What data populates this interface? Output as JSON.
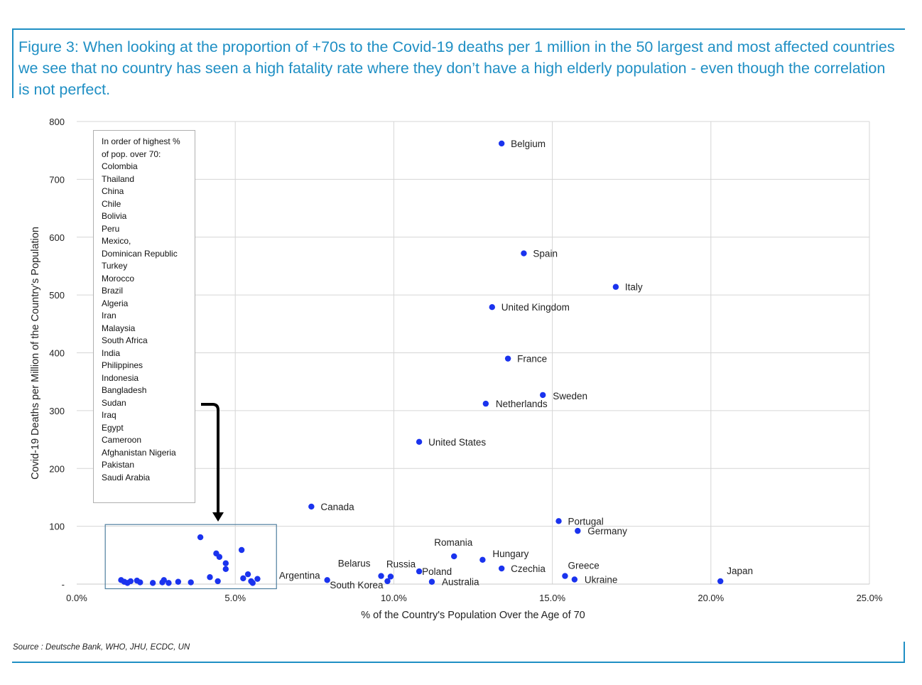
{
  "title": "Figure 3: When looking at the proportion of +70s to the Covid-19 deaths per 1 million in the 50 largest and most affected countries we see that no country has seen a high fatality rate where they don’t have a high elderly population - even though the correlation is not perfect.",
  "source": "Source : Deutsche Bank, WHO, JHU, ECDC, UN",
  "colors": {
    "accent": "#1f8fc4",
    "points": "#1a33ee",
    "grid": "#d6d6d6",
    "highlight_box": "#4f7f9f"
  },
  "legend_box": {
    "title_lines": [
      "In order of highest %",
      "of pop.  over 70:"
    ],
    "items": [
      "Colombia",
      "Thailand",
      "China",
      "Chile",
      "Bolivia",
      "Peru",
      "Mexico,",
      "Dominican Republic",
      "Turkey",
      "Morocco",
      "Brazil",
      "Algeria",
      "Iran",
      "Malaysia",
      "South Africa",
      "India",
      "Philippines",
      "Indonesia",
      "Bangladesh",
      "Sudan",
      "Iraq",
      "Egypt",
      "Cameroon",
      "Afghanistan Nigeria",
      "Pakistan",
      "Saudi Arabia"
    ]
  },
  "chart_data": {
    "type": "scatter",
    "xlabel": "% of the Country's Population Over the Age of 70",
    "ylabel": "Covid-19 Deaths per Million of the Country's Population",
    "xlim": [
      0,
      25
    ],
    "ylim": [
      0,
      800
    ],
    "grid": true,
    "x_ticks": [
      "0.0%",
      "5.0%",
      "10.0%",
      "15.0%",
      "20.0%",
      "25.0%"
    ],
    "y_ticks": [
      "-",
      "100",
      "200",
      "300",
      "400",
      "500",
      "600",
      "700",
      "800"
    ],
    "highlight_region": {
      "x": [
        0.9,
        6.3
      ],
      "y": [
        -8,
        103
      ]
    },
    "labeled_points": [
      {
        "label": "Belgium",
        "x": 13.4,
        "y": 762
      },
      {
        "label": "Spain",
        "x": 14.1,
        "y": 572
      },
      {
        "label": "Italy",
        "x": 17.0,
        "y": 514
      },
      {
        "label": "United Kingdom",
        "x": 13.1,
        "y": 479
      },
      {
        "label": "France",
        "x": 13.6,
        "y": 390
      },
      {
        "label": "Sweden",
        "x": 14.7,
        "y": 327
      },
      {
        "label": "Netherlands",
        "x": 12.9,
        "y": 312
      },
      {
        "label": "United States",
        "x": 10.8,
        "y": 246
      },
      {
        "label": "Canada",
        "x": 7.4,
        "y": 134
      },
      {
        "label": "Portugal",
        "x": 15.2,
        "y": 109
      },
      {
        "label": "Germany",
        "x": 15.8,
        "y": 92
      },
      {
        "label": "Romania",
        "x": 11.9,
        "y": 48
      },
      {
        "label": "Hungary",
        "x": 12.8,
        "y": 42
      },
      {
        "label": "Czechia",
        "x": 13.4,
        "y": 27
      },
      {
        "label": "Greece",
        "x": 15.4,
        "y": 14
      },
      {
        "label": "Ukraine",
        "x": 15.7,
        "y": 8
      },
      {
        "label": "Japan",
        "x": 20.3,
        "y": 5
      },
      {
        "label": "Argentina",
        "x": 7.9,
        "y": 7
      },
      {
        "label": "Belarus",
        "x": 9.6,
        "y": 14
      },
      {
        "label": "Russia",
        "x": 9.9,
        "y": 13
      },
      {
        "label": "Poland",
        "x": 10.8,
        "y": 22
      },
      {
        "label": "South Korea",
        "x": 9.8,
        "y": 5
      },
      {
        "label": "Australia",
        "x": 11.2,
        "y": 4
      }
    ],
    "unlabeled_points": [
      {
        "x": 1.4,
        "y": 7
      },
      {
        "x": 1.5,
        "y": 4
      },
      {
        "x": 1.6,
        "y": 2
      },
      {
        "x": 1.7,
        "y": 5
      },
      {
        "x": 1.9,
        "y": 6
      },
      {
        "x": 2.0,
        "y": 3
      },
      {
        "x": 2.4,
        "y": 2
      },
      {
        "x": 2.7,
        "y": 3
      },
      {
        "x": 2.75,
        "y": 7
      },
      {
        "x": 2.9,
        "y": 2
      },
      {
        "x": 3.2,
        "y": 4
      },
      {
        "x": 3.6,
        "y": 3
      },
      {
        "x": 3.9,
        "y": 81
      },
      {
        "x": 4.2,
        "y": 12
      },
      {
        "x": 4.4,
        "y": 53
      },
      {
        "x": 4.45,
        "y": 5
      },
      {
        "x": 4.5,
        "y": 47
      },
      {
        "x": 4.7,
        "y": 36
      },
      {
        "x": 4.7,
        "y": 26
      },
      {
        "x": 5.2,
        "y": 59
      },
      {
        "x": 5.25,
        "y": 10
      },
      {
        "x": 5.4,
        "y": 17
      },
      {
        "x": 5.5,
        "y": 5
      },
      {
        "x": 5.55,
        "y": 2
      },
      {
        "x": 5.7,
        "y": 9
      }
    ]
  }
}
